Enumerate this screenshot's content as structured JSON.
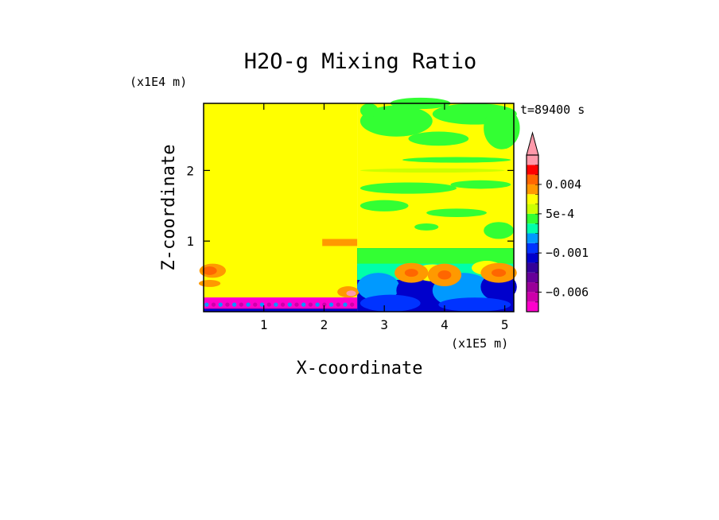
{
  "chart_data": {
    "type": "heatmap",
    "title": "H2O-g Mixing Ratio",
    "xlabel": "X-coordinate",
    "ylabel": "Z-coordinate",
    "x_unit": "(x1E5 m)",
    "y_unit": "(x1E4 m)",
    "time_label": "t=89400 s",
    "xlim": [
      0,
      5.15
    ],
    "ylim": [
      0,
      2.95
    ],
    "x_ticks": [
      1,
      2,
      3,
      4,
      5
    ],
    "y_ticks": [
      1,
      2
    ],
    "x_tick_labels": [
      "1",
      "2",
      "3",
      "4",
      "5"
    ],
    "y_tick_labels": [
      "1",
      "2"
    ],
    "colorbar": {
      "levels": [
        -0.009,
        -0.0075,
        -0.006,
        -0.0045,
        -0.003,
        -0.0015,
        -0.001,
        -0.0005,
        0,
        0.00025,
        0.0005,
        0.0008,
        0.002,
        0.004,
        0.006,
        0.008
      ],
      "colors": [
        "#ff00cc",
        "#cc00aa",
        "#990099",
        "#660099",
        "#330099",
        "#0000cc",
        "#0033ff",
        "#0099ff",
        "#00ffaa",
        "#33ff33",
        "#ccff00",
        "#ffff00",
        "#ff9900",
        "#ff6600",
        "#ff0000",
        "#ff99aa"
      ],
      "labels": [
        {
          "value": 0.004,
          "text": "0.004"
        },
        {
          "value": 0.0005,
          "text": "5e-4"
        },
        {
          "value": -0.001,
          "text": "−0.001"
        },
        {
          "value": -0.006,
          "text": "−0.006"
        }
      ]
    },
    "regions": [
      {
        "name": "background-left",
        "x": [
          0,
          2.55
        ],
        "z": [
          0.2,
          2.95
        ],
        "color": "#ffff00"
      },
      {
        "name": "background-right",
        "x": [
          2.55,
          5.15
        ],
        "z": [
          0.9,
          2.95
        ],
        "color": "#ffff00"
      },
      {
        "name": "surface-layer-left",
        "x": [
          0,
          2.55
        ],
        "z": [
          0,
          0.2
        ],
        "color": "#cc00aa"
      },
      {
        "name": "turbulent-layer-right",
        "x": [
          2.55,
          5.15
        ],
        "z": [
          0,
          0.9
        ],
        "color": "#0000cc"
      }
    ]
  }
}
